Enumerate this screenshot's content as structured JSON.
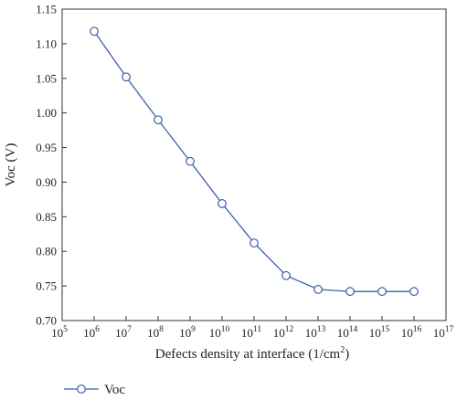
{
  "chart_data": {
    "type": "line",
    "xlabel": "Defects density at interface (1/cm",
    "xlabel_sup": "2",
    "xlabel_suffix": ")",
    "ylabel": "Voc (V)",
    "x_scale": "log",
    "xlim": [
      100000,
      100000000000000000
    ],
    "ylim": [
      0.7,
      1.15
    ],
    "x_tick_exponents": [
      5,
      6,
      7,
      8,
      9,
      10,
      11,
      12,
      13,
      14,
      15,
      16,
      17
    ],
    "x_tick_base": "10",
    "y_ticks": [
      "0.70",
      "0.75",
      "0.80",
      "0.85",
      "0.90",
      "0.95",
      "1.00",
      "1.05",
      "1.10",
      "1.15"
    ],
    "y_tick_values": [
      0.7,
      0.75,
      0.8,
      0.85,
      0.9,
      0.95,
      1.0,
      1.05,
      1.1,
      1.15
    ],
    "grid": false,
    "legend_position": "bottom-left",
    "series": [
      {
        "name": "Voc",
        "color": "#3f5fa8",
        "marker": "open-circle",
        "x": [
          1000000,
          10000000,
          100000000,
          1000000000,
          10000000000,
          100000000000,
          1000000000000,
          10000000000000,
          100000000000000,
          1000000000000000,
          10000000000000000
        ],
        "y": [
          1.118,
          1.052,
          0.99,
          0.93,
          0.869,
          0.812,
          0.765,
          0.745,
          0.742,
          0.742,
          0.742
        ]
      }
    ]
  }
}
